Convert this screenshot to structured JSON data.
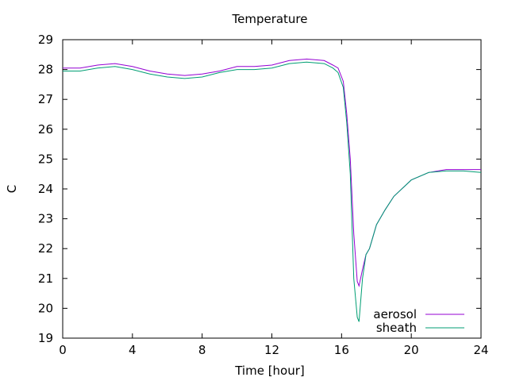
{
  "chart_data": {
    "type": "line",
    "title": "Temperature",
    "xlabel": "Time [hour]",
    "ylabel": "C",
    "xlim": [
      0,
      24
    ],
    "ylim": [
      19,
      29
    ],
    "xticks": [
      0,
      4,
      8,
      12,
      16,
      20,
      24
    ],
    "yticks": [
      19,
      20,
      21,
      22,
      23,
      24,
      25,
      26,
      27,
      28,
      29
    ],
    "grid": false,
    "legend_position": "bottom-right",
    "series": [
      {
        "name": "aerosol",
        "color": "#9400d3",
        "x": [
          0,
          1,
          2,
          3,
          4,
          5,
          6,
          7,
          8,
          9,
          10,
          11,
          12,
          13,
          14,
          15,
          15.5,
          15.8,
          16.1,
          16.3,
          16.5,
          16.7,
          16.9,
          17.0,
          17.2,
          17.4,
          17.6,
          17.8,
          18,
          18.5,
          19,
          20,
          21,
          22,
          23,
          24
        ],
        "values": [
          28.05,
          28.05,
          28.15,
          28.2,
          28.1,
          27.95,
          27.85,
          27.8,
          27.85,
          27.95,
          28.1,
          28.1,
          28.15,
          28.3,
          28.35,
          28.3,
          28.15,
          28.05,
          27.6,
          26.5,
          25.0,
          22.5,
          20.9,
          20.75,
          21.3,
          21.8,
          22.0,
          22.4,
          22.8,
          23.3,
          23.75,
          24.3,
          24.55,
          24.65,
          24.65,
          24.65
        ]
      },
      {
        "name": "sheath",
        "color": "#009e73",
        "x": [
          0,
          1,
          2,
          3,
          4,
          5,
          6,
          7,
          8,
          9,
          10,
          11,
          12,
          13,
          14,
          15,
          15.5,
          15.8,
          16.1,
          16.3,
          16.5,
          16.7,
          16.9,
          17.0,
          17.2,
          17.4,
          17.6,
          17.8,
          18,
          18.5,
          19,
          20,
          21,
          22,
          23,
          24
        ],
        "values": [
          27.95,
          27.95,
          28.05,
          28.1,
          28.0,
          27.85,
          27.75,
          27.7,
          27.75,
          27.9,
          28.0,
          28.0,
          28.05,
          28.2,
          28.25,
          28.2,
          28.05,
          27.9,
          27.4,
          26.2,
          24.5,
          21.0,
          19.7,
          19.55,
          21.0,
          21.8,
          22.0,
          22.4,
          22.8,
          23.3,
          23.75,
          24.3,
          24.55,
          24.6,
          24.6,
          24.55
        ]
      }
    ]
  }
}
